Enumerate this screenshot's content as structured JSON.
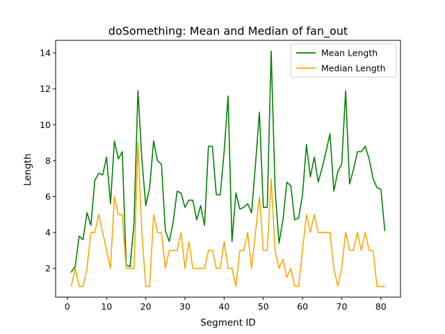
{
  "chart_data": {
    "type": "line",
    "title": "doSomething: Mean and Median of fan_out",
    "xlabel": "Segment ID",
    "ylabel": "Length",
    "xlim": [
      -3,
      85
    ],
    "ylim": [
      0.4,
      14.7
    ],
    "xticks": [
      0,
      10,
      20,
      30,
      40,
      50,
      60,
      70,
      80
    ],
    "yticks": [
      2,
      4,
      6,
      8,
      10,
      12,
      14
    ],
    "grid": false,
    "legend_position": "top-right",
    "x": [
      1,
      2,
      3,
      4,
      5,
      6,
      7,
      8,
      9,
      10,
      11,
      12,
      13,
      14,
      15,
      16,
      17,
      18,
      19,
      20,
      21,
      22,
      23,
      24,
      25,
      26,
      27,
      28,
      29,
      30,
      31,
      32,
      33,
      34,
      35,
      36,
      37,
      38,
      39,
      40,
      41,
      42,
      43,
      44,
      45,
      46,
      47,
      48,
      49,
      50,
      51,
      52,
      53,
      54,
      55,
      56,
      57,
      58,
      59,
      60,
      61,
      62,
      63,
      64,
      65,
      66,
      67,
      68,
      69,
      70,
      71,
      72,
      73,
      74,
      75,
      76,
      77,
      78,
      79,
      80,
      81
    ],
    "series": [
      {
        "name": "Mean Length",
        "color": "#008000",
        "values": [
          1.8,
          2.1,
          3.8,
          3.6,
          5.1,
          4.4,
          6.9,
          7.3,
          7.2,
          8.2,
          5.6,
          9.1,
          8.1,
          8.5,
          2.2,
          2.1,
          4.5,
          11.9,
          8.1,
          5.5,
          6.5,
          9.1,
          8.0,
          7.8,
          4.1,
          3.5,
          4.6,
          6.3,
          6.2,
          5.4,
          5.8,
          5.8,
          4.7,
          5.5,
          4.4,
          8.8,
          8.8,
          6.1,
          6.1,
          8.5,
          11.6,
          3.5,
          6.2,
          5.3,
          5.4,
          5.6,
          5.1,
          7.8,
          10.7,
          5.4,
          5.4,
          14.1,
          6.4,
          3.4,
          4.7,
          6.8,
          6.6,
          4.7,
          4.8,
          6.1,
          8.9,
          7.1,
          8.2,
          6.8,
          7.6,
          8.5,
          9.5,
          6.3,
          7.4,
          7.8,
          11.9,
          6.7,
          7.5,
          8.5,
          8.5,
          8.8,
          8.1,
          7.0,
          6.5,
          6.4,
          4.1
        ]
      },
      {
        "name": "Median Length",
        "color": "#FFA500",
        "values": [
          1.0,
          2.0,
          1.0,
          1.0,
          2.0,
          4.0,
          4.0,
          5.0,
          4.0,
          3.0,
          2.0,
          6.0,
          5.0,
          5.0,
          2.0,
          2.0,
          2.0,
          9.0,
          4.0,
          1.0,
          1.0,
          5.0,
          4.0,
          4.0,
          2.0,
          3.0,
          3.0,
          3.0,
          4.0,
          2.0,
          3.5,
          2.0,
          2.0,
          2.0,
          2.0,
          3.0,
          3.0,
          2.0,
          2.0,
          3.5,
          2.0,
          2.0,
          1.0,
          3.0,
          3.0,
          4.0,
          2.0,
          4.0,
          6.0,
          3.0,
          3.0,
          7.0,
          3.0,
          2.0,
          2.5,
          1.5,
          2.0,
          1.0,
          1.0,
          3.0,
          5.0,
          4.0,
          5.0,
          4.0,
          4.0,
          4.0,
          4.0,
          2.0,
          1.0,
          2.0,
          4.0,
          3.0,
          3.0,
          4.0,
          3.0,
          4.0,
          3.0,
          3.0,
          1.0,
          1.0,
          1.0
        ]
      }
    ]
  }
}
